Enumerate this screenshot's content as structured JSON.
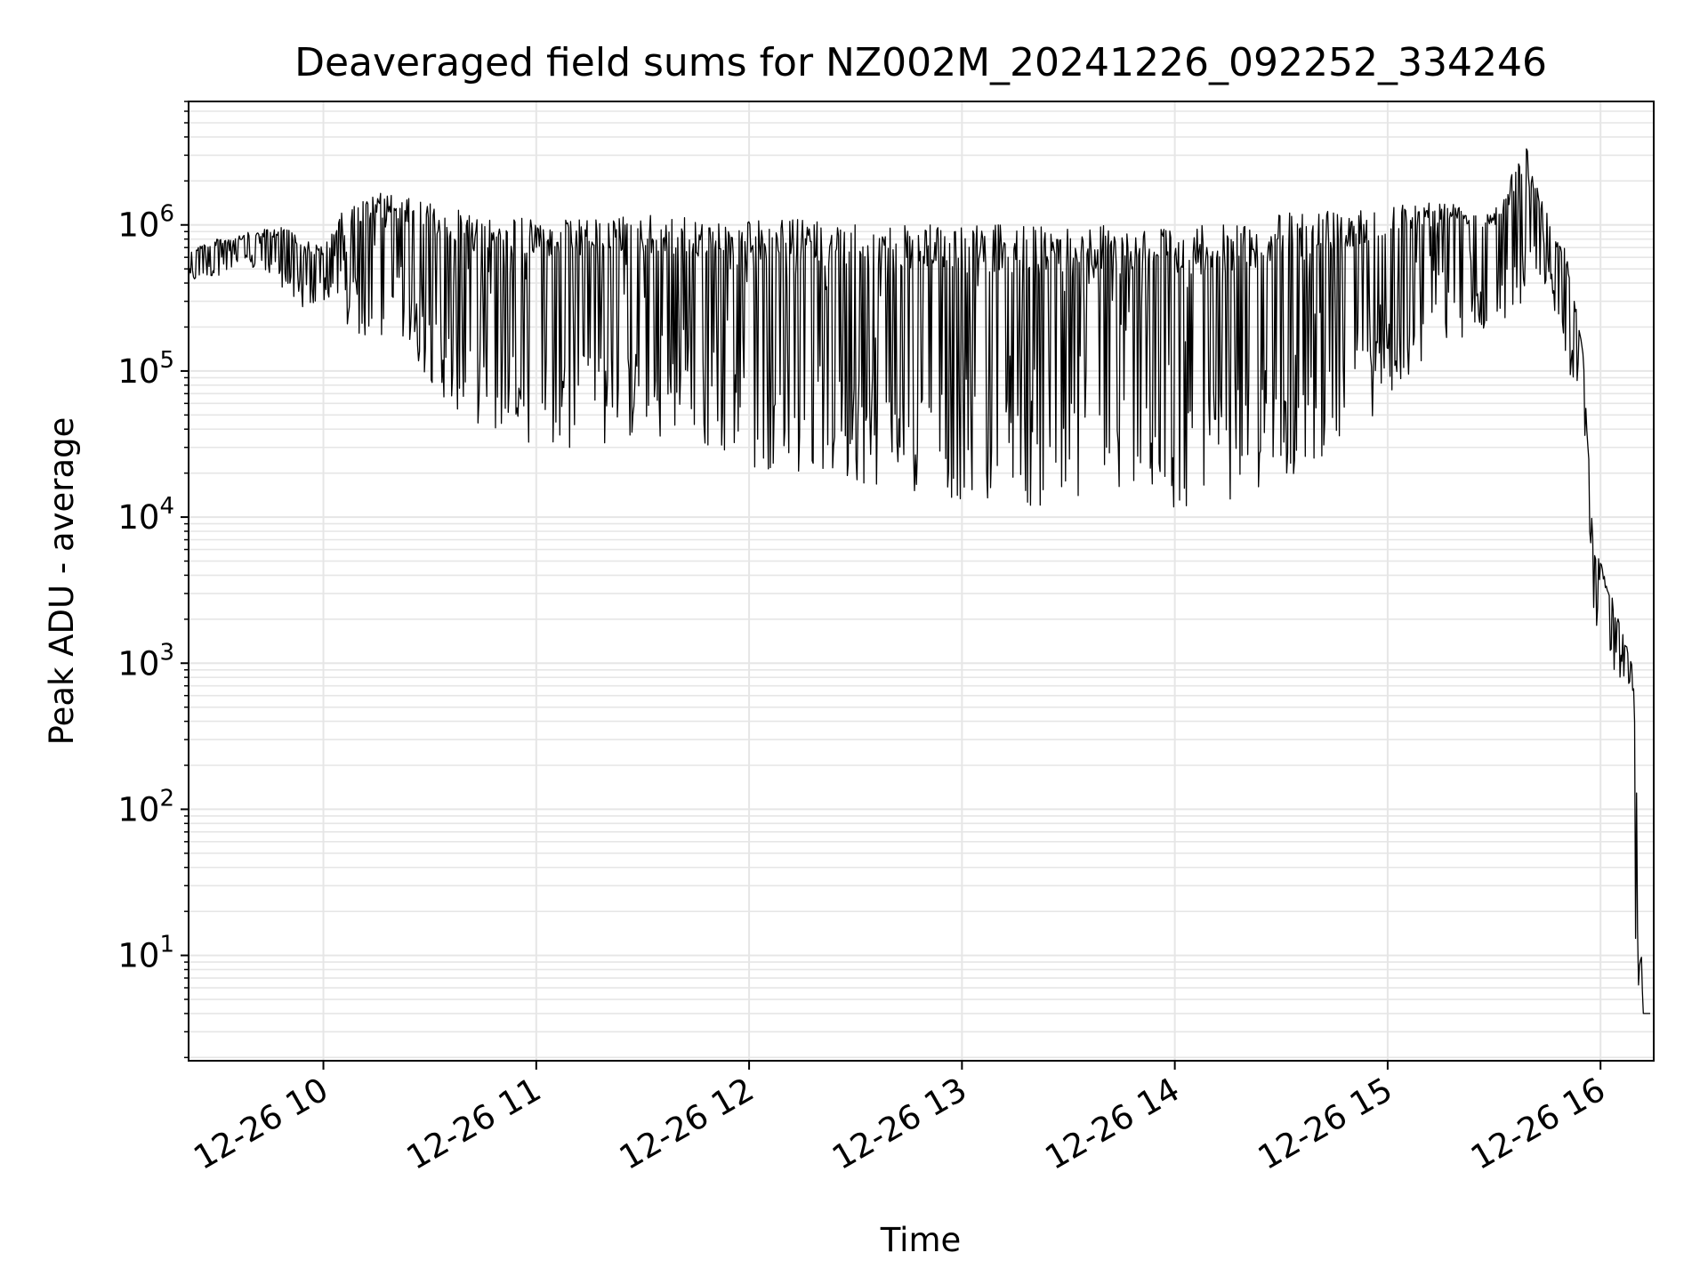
{
  "chart_data": {
    "type": "line",
    "title": "Deaveraged field sums for NZ002M_20241226_092252_334246",
    "xlabel": "Time",
    "ylabel": "Peak ADU - average",
    "yscale": "log",
    "ylim": [
      1.9,
      7000000
    ],
    "xlim": [
      "2024-12-26 09:22:00",
      "2024-12-26 16:15:00"
    ],
    "grid": true,
    "legend": "none",
    "line_color": "#000000",
    "grid_color": "#e6e6e6",
    "x_ticks": [
      {
        "t": "2024-12-26 10:00",
        "label": "12-26 10"
      },
      {
        "t": "2024-12-26 11:00",
        "label": "12-26 11"
      },
      {
        "t": "2024-12-26 12:00",
        "label": "12-26 12"
      },
      {
        "t": "2024-12-26 13:00",
        "label": "12-26 13"
      },
      {
        "t": "2024-12-26 14:00",
        "label": "12-26 14"
      },
      {
        "t": "2024-12-26 15:00",
        "label": "12-26 15"
      },
      {
        "t": "2024-12-26 16:00",
        "label": "12-26 16"
      }
    ],
    "y_ticks": [
      {
        "value": 10,
        "base": "10",
        "exp": "1"
      },
      {
        "value": 100,
        "base": "10",
        "exp": "2"
      },
      {
        "value": 1000,
        "base": "10",
        "exp": "3"
      },
      {
        "value": 10000,
        "base": "10",
        "exp": "4"
      },
      {
        "value": 100000,
        "base": "10",
        "exp": "5"
      },
      {
        "value": 1000000,
        "base": "10",
        "exp": "6"
      }
    ],
    "series": [
      {
        "x": [
          "2024-12-26 09:22",
          "2024-12-26 09:30",
          "2024-12-26 09:40",
          "2024-12-26 09:50",
          "2024-12-26 09:55",
          "2024-12-26 10:00",
          "2024-12-26 10:05",
          "2024-12-26 10:15",
          "2024-12-26 10:25",
          "2024-12-26 10:35",
          "2024-12-26 10:45",
          "2024-12-26 11:00",
          "2024-12-26 11:15",
          "2024-12-26 11:30",
          "2024-12-26 11:45",
          "2024-12-26 12:00",
          "2024-12-26 12:15",
          "2024-12-26 12:30",
          "2024-12-26 12:45",
          "2024-12-26 13:00",
          "2024-12-26 13:15",
          "2024-12-26 13:30",
          "2024-12-26 13:45",
          "2024-12-26 14:00",
          "2024-12-26 14:15",
          "2024-12-26 14:30",
          "2024-12-26 14:45",
          "2024-12-26 15:00",
          "2024-12-26 15:15",
          "2024-12-26 15:30",
          "2024-12-26 15:39",
          "2024-12-26 15:45",
          "2024-12-26 15:50",
          "2024-12-26 15:55",
          "2024-12-26 15:58",
          "2024-12-26 16:00",
          "2024-12-26 16:05",
          "2024-12-26 16:09",
          "2024-12-26 16:10",
          "2024-12-26 16:12",
          "2024-12-26 16:14"
        ],
        "high": [
          700000,
          800000,
          900000,
          1000000,
          800000,
          700000,
          1200000,
          1700000,
          1500000,
          1300000,
          1200000,
          1100000,
          1100000,
          1200000,
          1100000,
          1100000,
          1100000,
          1000000,
          1000000,
          1000000,
          1000000,
          1000000,
          1000000,
          1000000,
          1000000,
          1200000,
          1300000,
          1400000,
          1500000,
          1300000,
          3700000,
          1200000,
          700000,
          150000,
          6500,
          5500,
          2000,
          1000,
          300,
          4,
          4
        ],
        "low": [
          400000,
          450000,
          500000,
          350000,
          250000,
          300000,
          200000,
          150000,
          120000,
          60000,
          40000,
          30000,
          30000,
          35000,
          30000,
          22000,
          20000,
          17000,
          15000,
          13000,
          12000,
          11000,
          12000,
          11000,
          13000,
          16000,
          30000,
          60000,
          150000,
          200000,
          300000,
          400000,
          100000,
          80000,
          1500,
          1200,
          800,
          700,
          4,
          4,
          4
        ]
      }
    ]
  }
}
